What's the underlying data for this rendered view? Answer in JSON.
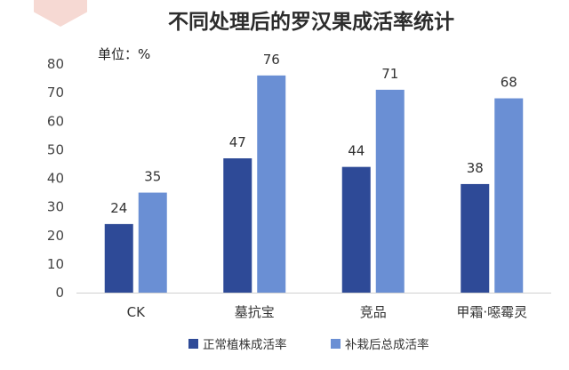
{
  "chart_data": {
    "type": "bar",
    "title": "不同处理后的罗汉果成活率统计",
    "unit_label": "单位：%",
    "categories": [
      "CK",
      "墓抗宝",
      "竞品",
      "甲霜·噁霉灵"
    ],
    "series": [
      {
        "name": "正常植株成活率",
        "color": "#2e4a97",
        "values": [
          24,
          47,
          44,
          38
        ]
      },
      {
        "name": "补栽后总成活率",
        "color": "#6a8fd4",
        "values": [
          35,
          76,
          71,
          68
        ]
      }
    ],
    "ylim": [
      0,
      80
    ],
    "yticks": [
      0,
      10,
      20,
      30,
      40,
      50,
      60,
      70,
      80
    ],
    "grid": false,
    "legend_position": "bottom"
  }
}
